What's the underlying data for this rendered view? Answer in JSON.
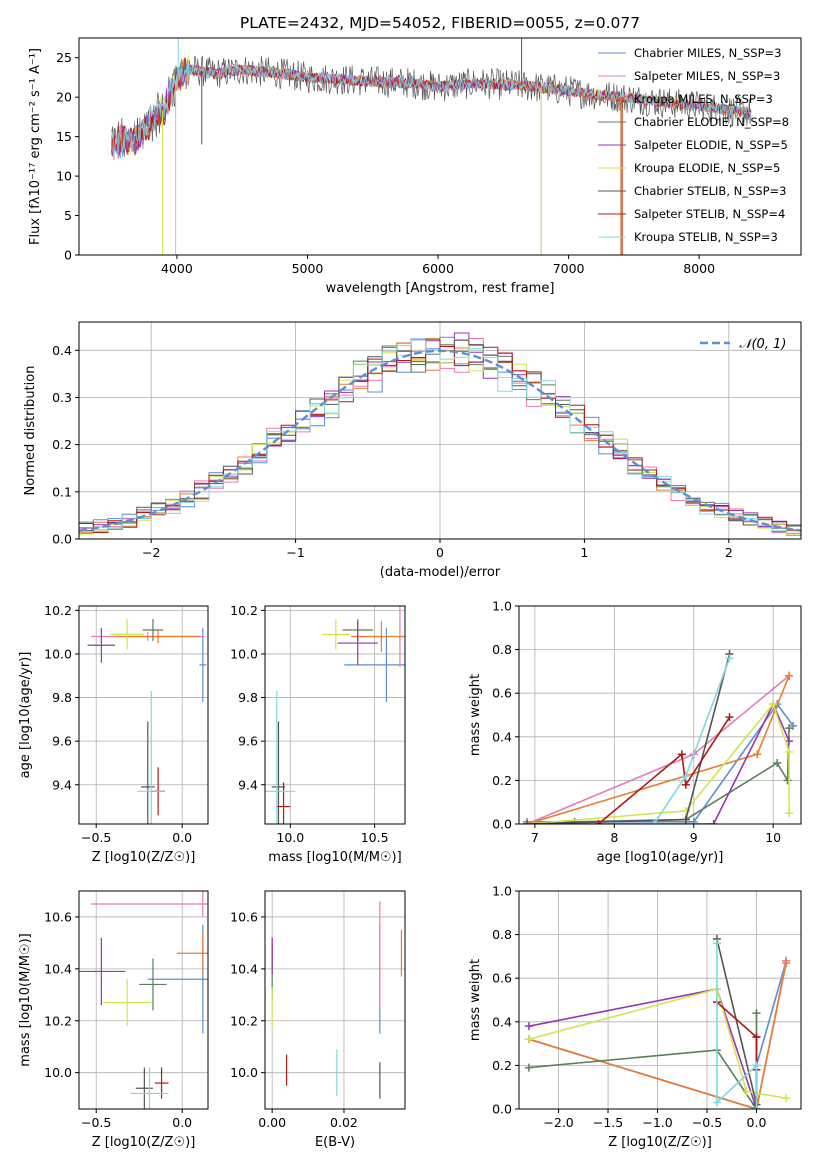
{
  "title": "PLATE=2432, MJD=54052, FIBERID=0055, z=0.077",
  "colors": {
    "Chabrier MILES": "#5b8fd6",
    "Salpeter MILES": "#e87ab8",
    "Kroupa MILES": "#e87d2e",
    "Chabrier ELODIE": "#5a7f5a",
    "Salpeter ELODIE": "#9a33b0",
    "Kroupa ELODIE": "#cfe64f",
    "Chabrier STELIB": "#555555",
    "Salpeter STELIB": "#b01818",
    "Kroupa STELIB": "#80d8e0",
    "normal_curve": "#5b8fd6"
  },
  "chart_data": [
    {
      "id": "spectrum",
      "type": "line",
      "xlabel": "wavelength [Angstrom, rest frame]",
      "ylabel": "Flux [fλ10⁻¹⁷ erg cm⁻² s⁻¹ A⁻¹]",
      "xlim": [
        3250,
        8780
      ],
      "ylim": [
        0,
        27.5
      ],
      "xticks": [
        4000,
        5000,
        6000,
        7000,
        8000
      ],
      "yticks": [
        0,
        5,
        10,
        15,
        20,
        25
      ],
      "legend_position": "top-right",
      "legend": [
        {
          "model": "Chabrier MILES",
          "label": "Chabrier MILES, N_SSP=3"
        },
        {
          "model": "Salpeter MILES",
          "label": "Salpeter MILES, N_SSP=3"
        },
        {
          "model": "Kroupa MILES",
          "label": "Kroupa MILES, N_SSP=3"
        },
        {
          "model": "Chabrier ELODIE",
          "label": "Chabrier ELODIE, N_SSP=8"
        },
        {
          "model": "Salpeter ELODIE",
          "label": "Salpeter ELODIE, N_SSP=5"
        },
        {
          "model": "Kroupa ELODIE",
          "label": "Kroupa ELODIE, N_SSP=5"
        },
        {
          "model": "Chabrier STELIB",
          "label": "Chabrier STELIB, N_SSP=3"
        },
        {
          "model": "Salpeter STELIB",
          "label": "Salpeter STELIB, N_SSP=4"
        },
        {
          "model": "Kroupa STELIB",
          "label": "Kroupa STELIB, N_SSP=3"
        }
      ],
      "continuum": {
        "x": [
          3500,
          3700,
          3900,
          4000,
          4100,
          4300,
          4500,
          4800,
          5000,
          5200,
          5500,
          5800,
          6000,
          6300,
          6600,
          6800,
          7000,
          7200,
          7400,
          7600,
          7800,
          8000,
          8200,
          8400
        ],
        "y": [
          14.0,
          15.0,
          18.5,
          22.5,
          23.5,
          23.0,
          23.5,
          23.0,
          22.5,
          22.3,
          22.0,
          21.8,
          21.3,
          21.8,
          21.5,
          21.2,
          20.8,
          20.3,
          20.0,
          19.6,
          19.2,
          18.9,
          18.4,
          18.0
        ]
      }
    },
    {
      "id": "residuals",
      "type": "line",
      "xlabel": "(data-model)/error",
      "ylabel": "Normed distribution",
      "xlim": [
        -2.5,
        2.5
      ],
      "ylim": [
        0,
        0.46
      ],
      "xticks": [
        -2,
        -1,
        0,
        1,
        2
      ],
      "yticks": [
        0.0,
        0.1,
        0.2,
        0.3,
        0.4
      ],
      "legend_position": "top-right",
      "legend": [
        {
          "label": "𝒩(0, 1)"
        }
      ],
      "normal": {
        "mean": 0,
        "sigma": 1
      }
    },
    {
      "id": "age-vs-Z",
      "type": "scatter",
      "xlabel": "Z [log10(Z/Z☉)]",
      "ylabel": "age  [log10(age/yr)]",
      "xlim": [
        -0.6,
        0.15
      ],
      "ylim": [
        9.22,
        10.22
      ],
      "xticks": [
        -0.5,
        0.0
      ],
      "yticks": [
        9.4,
        9.6,
        9.8,
        10.0,
        10.2
      ],
      "points": [
        {
          "model": "Chabrier MILES",
          "x": 0.12,
          "y": 9.95,
          "xe": 0.02,
          "ye": 0.17
        },
        {
          "model": "Salpeter MILES",
          "x": -0.2,
          "y": 10.08,
          "xe": 0.33,
          "ye": 0.02
        },
        {
          "model": "Kroupa MILES",
          "x": -0.14,
          "y": 10.08,
          "xe": 0.24,
          "ye": 0.03
        },
        {
          "model": "Chabrier ELODIE",
          "x": -0.17,
          "y": 10.11,
          "xe": 0.06,
          "ye": 0.05
        },
        {
          "model": "Salpeter ELODIE",
          "x": -0.47,
          "y": 10.04,
          "xe": 0.08,
          "ye": 0.08
        },
        {
          "model": "Kroupa ELODIE",
          "x": -0.32,
          "y": 10.09,
          "xe": 0.1,
          "ye": 0.07
        },
        {
          "model": "Chabrier STELIB",
          "x": -0.2,
          "y": 9.39,
          "xe": 0.04,
          "ye": 0.3
        },
        {
          "model": "Salpeter STELIB",
          "x": -0.14,
          "y": 9.37,
          "xe": 0.04,
          "ye": 0.11
        },
        {
          "model": "Kroupa STELIB",
          "x": -0.18,
          "y": 9.37,
          "xe": 0.08,
          "ye": 0.46
        }
      ]
    },
    {
      "id": "age-vs-mass",
      "type": "scatter",
      "xlabel": "mass [log10(M/M☉)]",
      "ylabel": "",
      "xlim": [
        9.85,
        10.68
      ],
      "ylim": [
        9.22,
        10.22
      ],
      "xticks": [
        10.0,
        10.5
      ],
      "yticks": [
        9.4,
        9.6,
        9.8,
        10.0,
        10.2
      ],
      "points": [
        {
          "model": "Chabrier MILES",
          "x": 10.57,
          "y": 9.95,
          "xe": 0.25,
          "ye": 0.17
        },
        {
          "model": "Salpeter MILES",
          "x": 10.65,
          "y": 10.08,
          "xe": 0.02,
          "ye": 0.14
        },
        {
          "model": "Kroupa MILES",
          "x": 10.54,
          "y": 10.08,
          "xe": 0.18,
          "ye": 0.07
        },
        {
          "model": "Chabrier ELODIE",
          "x": 10.4,
          "y": 10.11,
          "xe": 0.09,
          "ye": 0.05
        },
        {
          "model": "Salpeter ELODIE",
          "x": 10.4,
          "y": 10.05,
          "xe": 0.12,
          "ye": 0.1
        },
        {
          "model": "Kroupa ELODIE",
          "x": 10.27,
          "y": 10.09,
          "xe": 0.08,
          "ye": 0.07
        },
        {
          "model": "Chabrier STELIB",
          "x": 9.93,
          "y": 9.39,
          "xe": 0.04,
          "ye": 0.3
        },
        {
          "model": "Salpeter STELIB",
          "x": 9.96,
          "y": 9.3,
          "xe": 0.04,
          "ye": 0.11
        },
        {
          "model": "Kroupa STELIB",
          "x": 9.92,
          "y": 9.37,
          "xe": 0.11,
          "ye": 0.46
        }
      ]
    },
    {
      "id": "weight-vs-age",
      "type": "line",
      "xlabel": "age  [log10(age/yr)]",
      "ylabel": "mass weight",
      "xlim": [
        6.8,
        10.35
      ],
      "ylim": [
        0,
        1.0
      ],
      "xticks": [
        7,
        8,
        9,
        10
      ],
      "yticks": [
        0.0,
        0.2,
        0.4,
        0.6,
        0.8,
        1.0
      ],
      "series": [
        {
          "model": "Chabrier MILES",
          "x": [
            6.9,
            9.0,
            10.05,
            10.25
          ],
          "y": [
            0.01,
            0.01,
            0.55,
            0.45
          ]
        },
        {
          "model": "Salpeter MILES",
          "x": [
            6.9,
            9.0,
            10.2
          ],
          "y": [
            0.0,
            0.32,
            0.68
          ]
        },
        {
          "model": "Kroupa MILES",
          "x": [
            6.9,
            9.8,
            10.2
          ],
          "y": [
            0.0,
            0.32,
            0.68
          ]
        },
        {
          "model": "Chabrier ELODIE",
          "x": [
            6.9,
            7.5,
            8.9,
            10.05,
            10.18,
            10.2
          ],
          "y": [
            0.0,
            0.01,
            0.02,
            0.28,
            0.2,
            0.44
          ]
        },
        {
          "model": "Salpeter ELODIE",
          "x": [
            6.9,
            9.25,
            10.0,
            10.2
          ],
          "y": [
            0.0,
            0.0,
            0.55,
            0.38
          ]
        },
        {
          "model": "Kroupa ELODIE",
          "x": [
            6.9,
            8.9,
            10.0,
            10.2,
            10.2
          ],
          "y": [
            0.0,
            0.06,
            0.55,
            0.33,
            0.05
          ]
        },
        {
          "model": "Chabrier STELIB",
          "x": [
            6.9,
            8.9,
            9.45
          ],
          "y": [
            0.0,
            0.02,
            0.78
          ]
        },
        {
          "model": "Salpeter STELIB",
          "x": [
            7.8,
            8.85,
            8.9,
            9.45
          ],
          "y": [
            0.0,
            0.32,
            0.18,
            0.49
          ]
        },
        {
          "model": "Kroupa STELIB",
          "x": [
            8.5,
            8.9,
            9.45
          ],
          "y": [
            0.0,
            0.22,
            0.76
          ]
        }
      ]
    },
    {
      "id": "mass-vs-Z",
      "type": "scatter",
      "xlabel": "Z [log10(Z/Z☉)]",
      "ylabel": "mass [log10(M/M☉)]",
      "xlim": [
        -0.6,
        0.15
      ],
      "ylim": [
        9.86,
        10.7
      ],
      "xticks": [
        -0.5,
        0.0
      ],
      "yticks": [
        10.0,
        10.2,
        10.4,
        10.6
      ],
      "points": [
        {
          "model": "Chabrier MILES",
          "x": 0.12,
          "y": 10.36,
          "xe": 0.32,
          "ye": 0.21
        },
        {
          "model": "Salpeter MILES",
          "x": 0.12,
          "y": 10.65,
          "xe": 0.65,
          "ye": 0.05
        },
        {
          "model": "Kroupa MILES",
          "x": 0.12,
          "y": 10.46,
          "xe": 0.15,
          "ye": 0.08
        },
        {
          "model": "Chabrier ELODIE",
          "x": -0.17,
          "y": 10.34,
          "xe": 0.08,
          "ye": 0.1
        },
        {
          "model": "Salpeter ELODIE",
          "x": -0.47,
          "y": 10.39,
          "xe": 0.14,
          "ye": 0.13
        },
        {
          "model": "Kroupa ELODIE",
          "x": -0.32,
          "y": 10.27,
          "xe": 0.14,
          "ye": 0.09
        },
        {
          "model": "Chabrier STELIB",
          "x": -0.22,
          "y": 9.94,
          "xe": 0.05,
          "ye": 0.08
        },
        {
          "model": "Salpeter STELIB",
          "x": -0.12,
          "y": 9.96,
          "xe": 0.04,
          "ye": 0.06
        },
        {
          "model": "Kroupa STELIB",
          "x": -0.19,
          "y": 9.92,
          "xe": 0.11,
          "ye": 0.1
        }
      ]
    },
    {
      "id": "mass-vs-EBV",
      "type": "scatter",
      "xlabel": "E(B-V)",
      "ylabel": "",
      "xlim": [
        -0.002,
        0.037
      ],
      "ylim": [
        9.86,
        10.7
      ],
      "xticks": [
        0.0,
        0.02
      ],
      "tick_labels": [
        "0.00",
        "0.02"
      ],
      "yticks": [
        10.0,
        10.2,
        10.4,
        10.6
      ],
      "points": [
        {
          "model": "Chabrier MILES",
          "x": 0.03,
          "y": 10.36,
          "xe": 0,
          "ye": 0.21
        },
        {
          "model": "Salpeter MILES",
          "x": 0.03,
          "y": 10.45,
          "xe": 0,
          "ye": 0.21
        },
        {
          "model": "Kroupa MILES",
          "x": 0.036,
          "y": 10.46,
          "xe": 0,
          "ye": 0.09
        },
        {
          "model": "Chabrier ELODIE",
          "x": 0.0,
          "y": 10.4,
          "xe": 0,
          "ye": 0.12
        },
        {
          "model": "Salpeter ELODIE",
          "x": 0.0,
          "y": 10.45,
          "xe": 0,
          "ye": 0.07
        },
        {
          "model": "Kroupa ELODIE",
          "x": 0.0,
          "y": 10.25,
          "xe": 0,
          "ye": 0.08
        },
        {
          "model": "Chabrier STELIB",
          "x": 0.03,
          "y": 9.97,
          "xe": 0,
          "ye": 0.07
        },
        {
          "model": "Salpeter STELIB",
          "x": 0.004,
          "y": 10.01,
          "xe": 0,
          "ye": 0.06
        },
        {
          "model": "Kroupa STELIB",
          "x": 0.018,
          "y": 10.0,
          "xe": 0,
          "ye": 0.09
        }
      ]
    },
    {
      "id": "weight-vs-Z",
      "type": "line",
      "xlabel": "Z [log10(Z/Z☉)]",
      "ylabel": "mass weight",
      "xlim": [
        -2.4,
        0.45
      ],
      "ylim": [
        0,
        1.0
      ],
      "xticks": [
        -2.0,
        -1.5,
        -1.0,
        -0.5,
        0.0
      ],
      "yticks": [
        0.0,
        0.2,
        0.4,
        0.6,
        0.8,
        1.0
      ],
      "series": [
        {
          "model": "Chabrier MILES",
          "x": [
            -2.3,
            0.0,
            0.0,
            0.3
          ],
          "y": [
            0.32,
            0.0,
            0.2,
            0.68
          ]
        },
        {
          "model": "Salpeter MILES",
          "x": [
            -2.3,
            0.0,
            0.3
          ],
          "y": [
            0.32,
            0.0,
            0.68
          ]
        },
        {
          "model": "Kroupa MILES",
          "x": [
            -2.3,
            0.0,
            0.3
          ],
          "y": [
            0.32,
            0.0,
            0.67
          ]
        },
        {
          "model": "Chabrier ELODIE",
          "x": [
            -2.3,
            -0.4,
            0.0,
            0.0
          ],
          "y": [
            0.19,
            0.27,
            0.0,
            0.44
          ]
        },
        {
          "model": "Salpeter ELODIE",
          "x": [
            -2.3,
            -0.4,
            0.0
          ],
          "y": [
            0.38,
            0.55,
            0.0
          ]
        },
        {
          "model": "Kroupa ELODIE",
          "x": [
            -2.3,
            -0.4,
            -0.1,
            0.3
          ],
          "y": [
            0.32,
            0.55,
            0.08,
            0.05
          ]
        },
        {
          "model": "Chabrier STELIB",
          "x": [
            -0.4,
            0.0,
            0.0
          ],
          "y": [
            0.78,
            0.02,
            0.33
          ]
        },
        {
          "model": "Salpeter STELIB",
          "x": [
            -0.4,
            0.0,
            0.0
          ],
          "y": [
            0.49,
            0.33,
            0.18
          ]
        },
        {
          "model": "Kroupa STELIB",
          "x": [
            -0.4,
            -0.4,
            0.0,
            0.0
          ],
          "y": [
            0.76,
            0.03,
            0.2,
            0.0
          ]
        }
      ]
    }
  ]
}
